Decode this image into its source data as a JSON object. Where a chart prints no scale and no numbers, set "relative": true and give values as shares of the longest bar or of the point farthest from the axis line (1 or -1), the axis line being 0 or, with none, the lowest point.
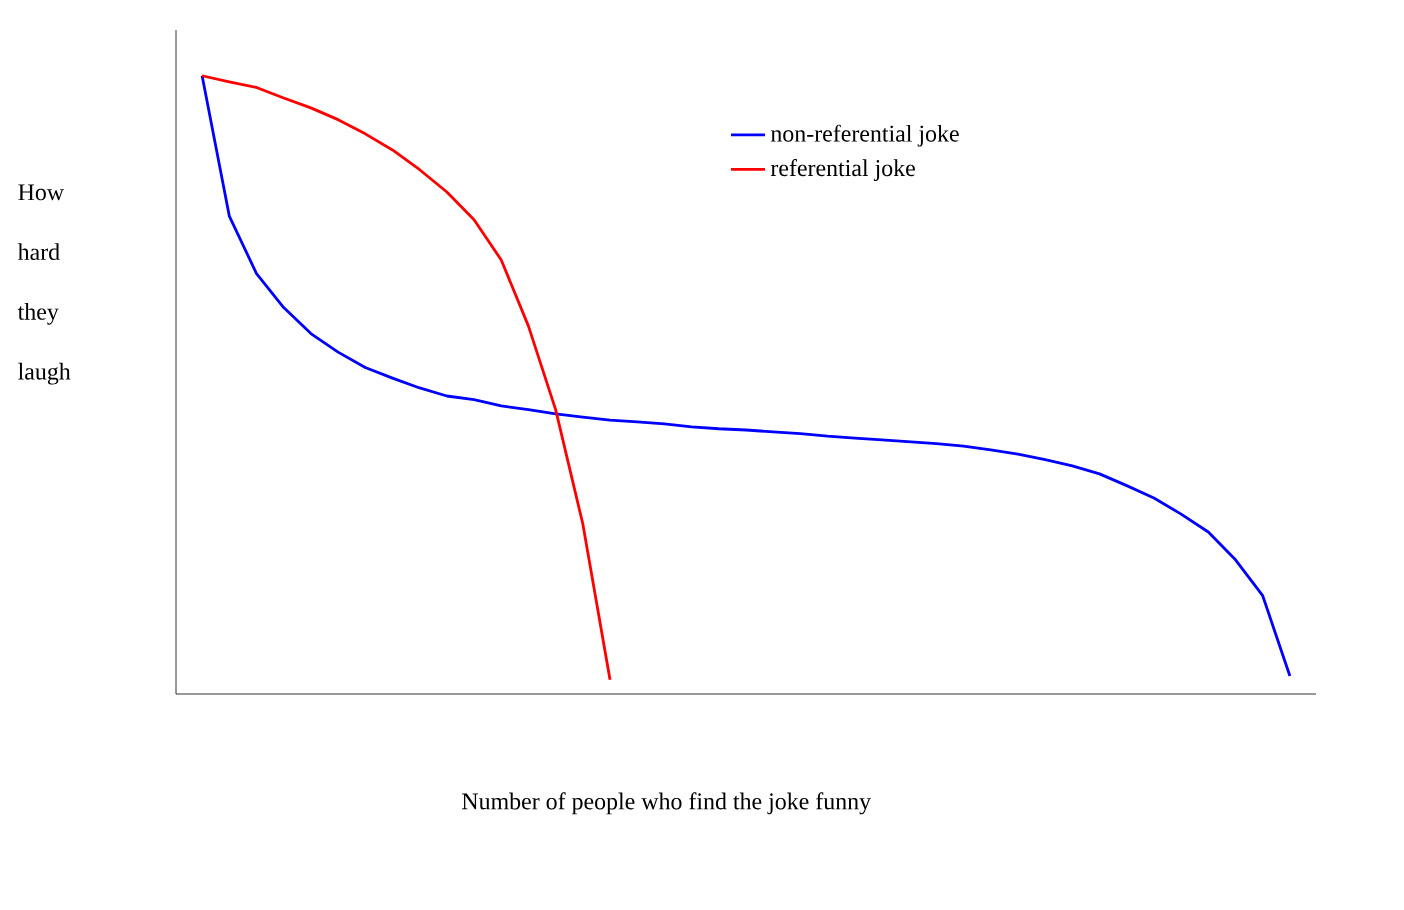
{
  "chart_data": {
    "type": "line",
    "relative": true,
    "xlabel": "Number of people who find the joke funny",
    "ylabel": "How hard they laugh",
    "legend": "top right",
    "marker": "none",
    "line_style": "solid",
    "categories": [
      null,
      null,
      null,
      null,
      null,
      null,
      null,
      null,
      null,
      null,
      null,
      null,
      null,
      null,
      null,
      null,
      null,
      null,
      null,
      null,
      null,
      null,
      null,
      null,
      null,
      null,
      null,
      null,
      null,
      null,
      null,
      null,
      null,
      null,
      null,
      null,
      null,
      null,
      null,
      null,
      null
    ],
    "series": [
      {
        "name": "non-referential joke",
        "color": "#0000ff",
        "values": [
          1.0,
          0.773,
          0.68,
          0.625,
          0.583,
          0.553,
          0.528,
          0.511,
          0.495,
          0.482,
          0.476,
          0.466,
          0.46,
          0.453,
          0.448,
          0.443,
          0.44,
          0.437,
          0.432,
          0.429,
          0.427,
          0.424,
          0.421,
          0.417,
          0.414,
          0.411,
          0.408,
          0.405,
          0.401,
          0.395,
          0.388,
          0.379,
          0.369,
          0.356,
          0.337,
          0.317,
          0.291,
          0.262,
          0.217,
          0.159,
          0.029
        ]
      },
      {
        "name": "referential joke",
        "color": "#ff0000",
        "values": [
          1.0,
          0.99,
          0.981,
          0.964,
          0.948,
          0.929,
          0.906,
          0.88,
          0.848,
          0.812,
          0.767,
          0.702,
          0.595,
          0.46,
          0.275,
          0.023,
          null,
          null,
          null,
          null,
          null,
          null,
          null,
          null,
          null,
          null,
          null,
          null,
          null,
          null,
          null,
          null,
          null,
          null,
          null,
          null,
          null,
          null,
          null,
          null,
          null
        ]
      }
    ]
  }
}
